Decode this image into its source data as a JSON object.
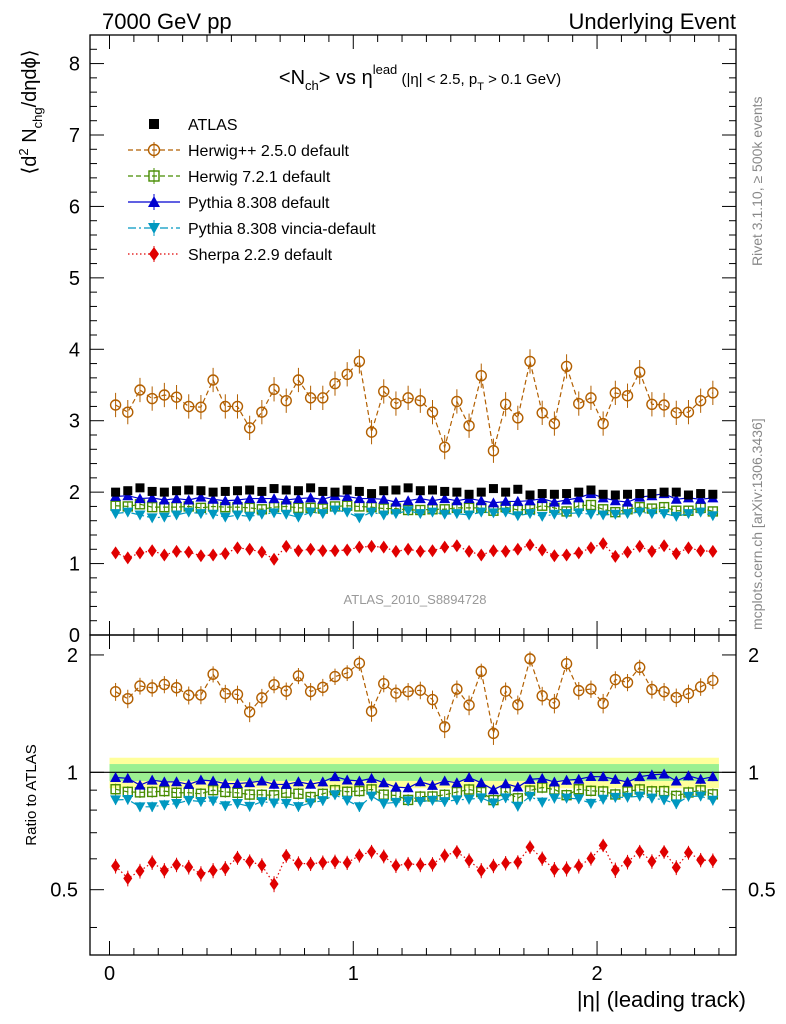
{
  "header": {
    "left": "7000 GeV pp",
    "right": "Underlying Event"
  },
  "side": {
    "rivet": "Rivet 3.1.10, ≥ 500k events",
    "mcplots": "mcplots.cern.ch [arXiv:1306.3436]"
  },
  "watermark": "ATLAS_2010_S8894728",
  "chart_data": {
    "type": "scatter",
    "title": "<N_ch> vs η^lead (|η| < 2.5, p_T > 0.1 GeV)",
    "title_parts": {
      "a": "<N",
      "a_sub": "ch",
      "b": "> vs η",
      "b_sup": "lead",
      "c": " (|η| < 2.5, p",
      "c_sub": "T",
      "d": " > 0.1 GeV)"
    },
    "ylabel_parts": {
      "a": "⟨d",
      "sup": "2",
      "b": " N",
      "sub": "chg",
      "c": "/dηdϕ⟩"
    },
    "xlabel": "|η| (leading track)",
    "ratio_ylabel": "Ratio to ATLAS",
    "xlim": [
      -0.08,
      2.57
    ],
    "ylim": [
      0,
      8.4
    ],
    "ratio_ylim": [
      0.34,
      2.25
    ],
    "x_ticks": [
      0,
      1,
      2
    ],
    "x_tick_labels": [
      "0",
      "1",
      "2"
    ],
    "y_ticks": [
      0,
      1,
      2,
      3,
      4,
      5,
      6,
      7,
      8
    ],
    "y_tick_labels": [
      "0",
      "1",
      "2",
      "3",
      "4",
      "5",
      "6",
      "7",
      "8"
    ],
    "ratio_ticks": [
      0.5,
      1,
      2
    ],
    "ratio_tick_labels": [
      "0.5",
      "1",
      "2"
    ],
    "x": [
      0.025,
      0.075,
      0.125,
      0.175,
      0.225,
      0.275,
      0.325,
      0.375,
      0.425,
      0.475,
      0.525,
      0.575,
      0.625,
      0.675,
      0.725,
      0.775,
      0.825,
      0.875,
      0.925,
      0.975,
      1.025,
      1.075,
      1.125,
      1.175,
      1.225,
      1.275,
      1.325,
      1.375,
      1.425,
      1.475,
      1.525,
      1.575,
      1.625,
      1.675,
      1.725,
      1.775,
      1.825,
      1.875,
      1.925,
      1.975,
      2.025,
      2.075,
      2.125,
      2.175,
      2.225,
      2.275,
      2.325,
      2.375,
      2.425,
      2.475
    ],
    "band": {
      "inner": 0.05,
      "outer": 0.09
    },
    "series": [
      {
        "name": "ATLAS",
        "color": "#000000",
        "marker": "square",
        "line": "none",
        "values": [
          2.0,
          2.02,
          2.06,
          2.01,
          2.0,
          2.02,
          2.03,
          2.02,
          2.0,
          2.01,
          2.02,
          2.03,
          2.01,
          2.05,
          2.03,
          2.02,
          2.06,
          2.01,
          2.0,
          2.03,
          2.01,
          1.98,
          2.02,
          2.03,
          2.06,
          2.02,
          2.03,
          2.01,
          2.0,
          1.97,
          2.0,
          2.05,
          2.0,
          2.04,
          1.96,
          1.98,
          1.97,
          1.98,
          2.0,
          2.03,
          1.97,
          1.96,
          1.97,
          1.98,
          1.98,
          2.0,
          2.0,
          1.96,
          1.98,
          1.97
        ]
      },
      {
        "name": "Herwig++ 2.5.0 default",
        "color": "#b25f00",
        "marker": "circle-open",
        "line": "dashed",
        "err": 0.17,
        "values": [
          3.22,
          3.12,
          3.43,
          3.31,
          3.36,
          3.33,
          3.2,
          3.19,
          3.57,
          3.2,
          3.2,
          2.9,
          3.12,
          3.44,
          3.28,
          3.57,
          3.32,
          3.32,
          3.52,
          3.65,
          3.83,
          2.84,
          3.41,
          3.24,
          3.32,
          3.28,
          3.12,
          2.63,
          3.27,
          2.93,
          3.63,
          2.58,
          3.23,
          3.04,
          3.83,
          3.11,
          2.96,
          3.76,
          3.24,
          3.32,
          2.96,
          3.39,
          3.35,
          3.68,
          3.23,
          3.22,
          3.11,
          3.12,
          3.28,
          3.39
        ]
      },
      {
        "name": "Herwig 7.2.1 default",
        "color": "#468c00",
        "marker": "square-open",
        "line": "dashed",
        "err": 0.06,
        "values": [
          1.81,
          1.8,
          1.83,
          1.79,
          1.79,
          1.79,
          1.8,
          1.78,
          1.8,
          1.79,
          1.79,
          1.78,
          1.76,
          1.79,
          1.8,
          1.78,
          1.78,
          1.77,
          1.8,
          1.81,
          1.8,
          1.79,
          1.77,
          1.77,
          1.75,
          1.75,
          1.76,
          1.76,
          1.78,
          1.78,
          1.78,
          1.74,
          1.79,
          1.75,
          1.76,
          1.81,
          1.78,
          1.73,
          1.81,
          1.82,
          1.76,
          1.72,
          1.76,
          1.79,
          1.77,
          1.79,
          1.74,
          1.74,
          1.78,
          1.73
        ]
      },
      {
        "name": "Pythia 8.308 default",
        "color": "#0000d0",
        "marker": "triangle-up",
        "line": "solid",
        "err": 0.05,
        "values": [
          1.94,
          1.95,
          1.91,
          1.92,
          1.89,
          1.91,
          1.89,
          1.93,
          1.9,
          1.88,
          1.89,
          1.91,
          1.91,
          1.91,
          1.89,
          1.91,
          1.92,
          1.9,
          1.95,
          1.94,
          1.91,
          1.91,
          1.9,
          1.86,
          1.88,
          1.91,
          1.88,
          1.91,
          1.88,
          1.91,
          1.88,
          1.85,
          1.87,
          1.87,
          1.88,
          1.91,
          1.86,
          1.89,
          1.92,
          1.98,
          1.92,
          1.88,
          1.86,
          1.93,
          1.95,
          1.98,
          1.9,
          1.92,
          1.9,
          1.92
        ]
      },
      {
        "name": "Pythia 8.308 vincia-default",
        "color": "#0098c0",
        "marker": "triangle-down",
        "line": "dashdot",
        "err": 0.05,
        "values": [
          1.7,
          1.72,
          1.68,
          1.64,
          1.65,
          1.68,
          1.72,
          1.7,
          1.69,
          1.65,
          1.68,
          1.66,
          1.69,
          1.71,
          1.69,
          1.65,
          1.72,
          1.7,
          1.75,
          1.72,
          1.64,
          1.72,
          1.68,
          1.7,
          1.74,
          1.7,
          1.72,
          1.69,
          1.7,
          1.68,
          1.72,
          1.71,
          1.72,
          1.67,
          1.7,
          1.66,
          1.69,
          1.7,
          1.71,
          1.69,
          1.68,
          1.69,
          1.7,
          1.72,
          1.7,
          1.7,
          1.66,
          1.7,
          1.72,
          1.67
        ]
      },
      {
        "name": "Sherpa 2.2.9 default",
        "color": "#e00000",
        "marker": "diamond",
        "line": "dotted",
        "err": 0.05,
        "values": [
          1.15,
          1.08,
          1.15,
          1.18,
          1.12,
          1.17,
          1.16,
          1.11,
          1.12,
          1.14,
          1.22,
          1.2,
          1.16,
          1.06,
          1.24,
          1.18,
          1.2,
          1.18,
          1.18,
          1.19,
          1.23,
          1.24,
          1.23,
          1.17,
          1.2,
          1.17,
          1.18,
          1.23,
          1.25,
          1.17,
          1.12,
          1.18,
          1.17,
          1.2,
          1.26,
          1.19,
          1.11,
          1.12,
          1.15,
          1.22,
          1.28,
          1.1,
          1.16,
          1.24,
          1.17,
          1.25,
          1.14,
          1.22,
          1.18,
          1.17
        ]
      }
    ]
  }
}
